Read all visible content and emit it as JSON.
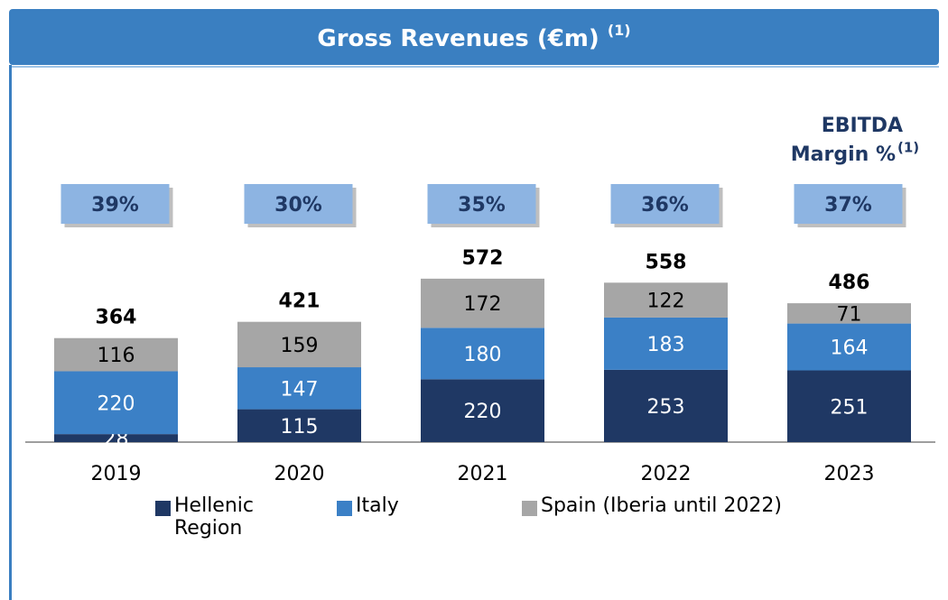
{
  "chart_data": {
    "type": "stacked_bar",
    "title": "Gross Revenues (€m)",
    "title_note": "(1)",
    "categories": [
      "2019",
      "2020",
      "2021",
      "2022",
      "2023"
    ],
    "series": [
      {
        "name": "Hellenic Region",
        "color": "#1f3864",
        "values": [
          28,
          115,
          220,
          253,
          251
        ]
      },
      {
        "name": "Italy",
        "color": "#3b80c6",
        "values": [
          220,
          147,
          180,
          183,
          164
        ]
      },
      {
        "name": "Spain (Iberia until 2022)",
        "color": "#a6a6a6",
        "values": [
          116,
          159,
          172,
          122,
          71
        ]
      }
    ],
    "totals": [
      364,
      421,
      572,
      558,
      486
    ],
    "ylim": [
      0,
      600
    ],
    "margin_title": [
      "EBITDA",
      "Margin %"
    ],
    "margin_note": "(1)",
    "margins": [
      39,
      30,
      35,
      36,
      37
    ],
    "margin_labels": [
      "39%",
      "30%",
      "35%",
      "36%",
      "37%"
    ],
    "margin_color": "#8db4e2"
  }
}
